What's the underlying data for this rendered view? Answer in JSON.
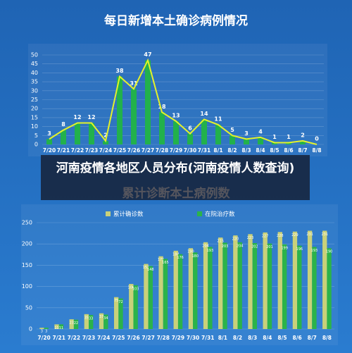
{
  "chart_data": [
    {
      "type": "bar",
      "title": "每日新增本土确诊病例情况",
      "categories": [
        "7/20",
        "7/21",
        "7/22",
        "7/23",
        "7/24",
        "7/25",
        "7/26",
        "7/27",
        "7/28",
        "7/29",
        "7/30",
        "7/31",
        "8/1",
        "8/2",
        "8/3",
        "8/4",
        "8/5",
        "8/6",
        "8/7",
        "8/8"
      ],
      "values": [
        3,
        8,
        12,
        12,
        2,
        38,
        31,
        47,
        18,
        13,
        6,
        14,
        11,
        5,
        3,
        4,
        1,
        1,
        2,
        0
      ],
      "color": "#22b14c",
      "line": true,
      "line_color": "#e4f22a",
      "ylim": [
        0,
        50
      ],
      "yticks": [
        0,
        5,
        10,
        15,
        20,
        25,
        30,
        35,
        40,
        45,
        50
      ],
      "grid": true
    },
    {
      "type": "grouped-bar",
      "title": "累计诊断本土病例数",
      "categories": [
        "7/20",
        "7/21",
        "7/22",
        "7/23",
        "7/24",
        "7/25",
        "7/26",
        "7/27",
        "7/28",
        "7/29",
        "7/30",
        "7/31",
        "8/1",
        "8/2",
        "8/3",
        "8/4",
        "8/5",
        "8/6",
        "8/7",
        "8/8"
      ],
      "series": [
        {
          "name": "累计确诊数",
          "color": "#c9d17a",
          "values": [
            3,
            11,
            23,
            35,
            37,
            75,
            106,
            153,
            171,
            184,
            190,
            204,
            215,
            220,
            223,
            227,
            228,
            229,
            231,
            231
          ]
        },
        {
          "name": "在院治疗数",
          "color": "#2bb34a",
          "values": [
            3,
            11,
            22,
            33,
            34,
            72,
            103,
            148,
            165,
            176,
            180,
            193,
            203,
            204,
            202,
            201,
            199,
            196,
            193,
            190
          ]
        }
      ],
      "ylim": [
        0,
        250
      ],
      "yticks": [
        0,
        50,
        100,
        150,
        200,
        250
      ],
      "grid": true,
      "legend": "top"
    }
  ],
  "caption": "河南疫情各地区人员分布(河南疫情人数查询)"
}
